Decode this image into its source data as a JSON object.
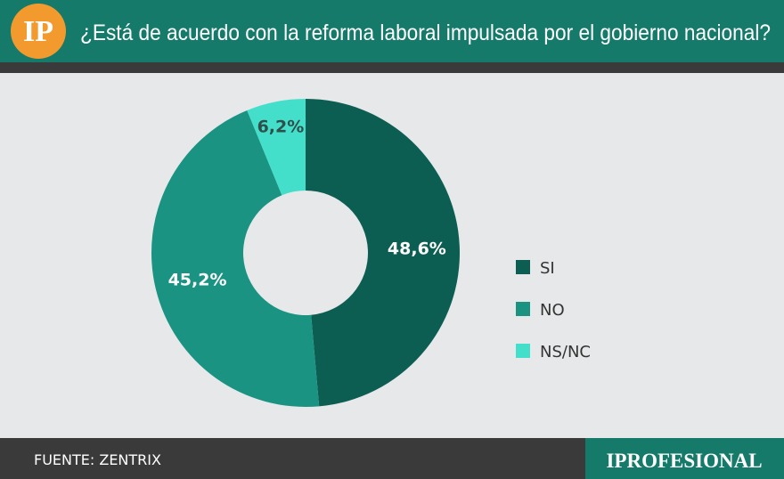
{
  "logo": "IP",
  "brand": "IPROFESIONAL",
  "source": "FUENTE: ZENTRIX",
  "chart_data": {
    "type": "donut",
    "title": "¿Está de acuerdo con la reforma laboral impulsada por el gobierno nacional?",
    "categories": [
      "SI",
      "NO",
      "NS/NC"
    ],
    "values": [
      48.6,
      45.2,
      6.2
    ],
    "value_labels": [
      "48,6%",
      "45,2%",
      "6,2%"
    ],
    "colors": [
      "#0d5e52",
      "#1a9383",
      "#44dfca"
    ]
  }
}
